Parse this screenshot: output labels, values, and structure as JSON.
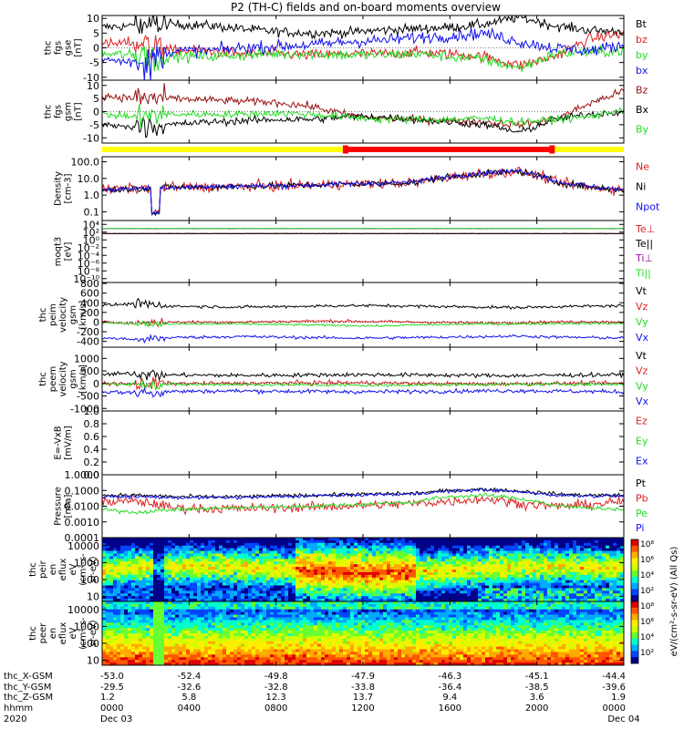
{
  "chart_data": {
    "type": "line",
    "title": "P2 (TH-C) fields and on-board moments overview",
    "mission_state_bar": {
      "labels": [
        "yellow",
        "red"
      ],
      "colors": [
        "#ffff00",
        "#ff0000"
      ],
      "red_span_hours": [
        11.2,
        20.7
      ]
    },
    "x_axis": {
      "range_hours": [
        0,
        24
      ],
      "tick_hours": [
        0,
        4,
        8,
        12,
        16,
        20,
        24
      ],
      "row_labels": [
        "thc_X-GSM",
        "thc_Y-GSM",
        "thc_Z-GSM",
        "hhmm",
        "2020"
      ],
      "columns": [
        [
          "-53.0",
          "-29.5",
          "1.2",
          "0000",
          "Dec 03"
        ],
        [
          "-52.4",
          "-32.6",
          "5.8",
          "0400",
          ""
        ],
        [
          "-49.8",
          "-32.8",
          "12.3",
          "0800",
          ""
        ],
        [
          "-47.9",
          "-33.8",
          "13.7",
          "1200",
          ""
        ],
        [
          "-46.3",
          "-36.4",
          "9.4",
          "1600",
          ""
        ],
        [
          "-45.1",
          "-38.5",
          "3.6",
          "2000",
          ""
        ],
        [
          "-44.4",
          "-39.6",
          "1.9",
          "0000",
          "Dec 04"
        ]
      ]
    },
    "panels": [
      {
        "id": "fgs_gse",
        "ylabel": [
          "thc",
          "fgs",
          "gse",
          "[nT]"
        ],
        "scale": "linear",
        "ylim": [
          -11,
          11
        ],
        "ticks": [
          "10",
          "5",
          "0",
          "-5",
          "-10"
        ],
        "tick_values": [
          10,
          5,
          0,
          -5,
          -10
        ],
        "series": [
          {
            "name": "Bt",
            "color": "#000000",
            "base": [
              7,
              7.5,
              8,
              7.6,
              6.5,
              5.5,
              5,
              5.2,
              6,
              6.5,
              7,
              8,
              10.5,
              7.5,
              6,
              5.5
            ],
            "noise": 0.8
          },
          {
            "name": "bz",
            "color": "#dd2222",
            "base": [
              1,
              2,
              -1,
              -1,
              -2,
              -2,
              -2.5,
              -2,
              -2,
              -1.5,
              -2,
              -3,
              -6,
              -3,
              3,
              5
            ],
            "noise": 0.9
          },
          {
            "name": "by",
            "color": "#22dd22",
            "base": [
              -2,
              -2.5,
              -3,
              -3,
              -2.5,
              -2,
              -2,
              -2.5,
              -2.5,
              -2,
              -3,
              -4,
              -7,
              -2,
              -1.5,
              -1
            ],
            "noise": 0.9
          },
          {
            "name": "bx",
            "color": "#1111ee",
            "base": [
              -4,
              -5,
              -1,
              -1,
              0,
              0.5,
              1,
              2,
              2.5,
              3.5,
              4,
              5,
              2,
              0,
              -1,
              1
            ],
            "noise": 1.0
          }
        ]
      },
      {
        "id": "fgs_gsm",
        "ylabel": [
          "thc",
          "fgs",
          "gsm",
          "[nT]"
        ],
        "scale": "linear",
        "ylim": [
          -12,
          12
        ],
        "ticks": [
          "10",
          "5",
          "0",
          "-5",
          "-10"
        ],
        "tick_values": [
          10,
          5,
          0,
          -5,
          -10
        ],
        "series": [
          {
            "name": "Bz",
            "color": "#991111",
            "base": [
              6,
              5,
              5,
              4.5,
              4,
              3.5,
              2,
              -1,
              -2.5,
              -3,
              -3.5,
              -4,
              -5,
              -3,
              3,
              8
            ],
            "noise": 0.7
          },
          {
            "name": "Bx",
            "color": "#000000",
            "base": [
              -5,
              -6,
              -5,
              -4,
              -3.5,
              -3,
              -3,
              -2,
              -2,
              -3,
              -4,
              -5,
              -8,
              -3,
              -1,
              0
            ],
            "noise": 0.7
          },
          {
            "name": "By",
            "color": "#22dd22",
            "base": [
              -1,
              -2,
              -1,
              -1,
              -1,
              -0.5,
              -1,
              -2,
              -3,
              -3,
              -3,
              -2.5,
              -4,
              -3,
              -2,
              1
            ],
            "noise": 0.7
          }
        ]
      },
      {
        "id": "density",
        "ylabel": [
          "Density",
          "[cm-3]"
        ],
        "scale": "log",
        "ylim": [
          0.03,
          200
        ],
        "ticks": [
          "100.0",
          "10.0",
          "1.0",
          "0.1"
        ],
        "tick_values": [
          100,
          10,
          1,
          0.1
        ],
        "series": [
          {
            "name": "Ne",
            "color": "#dd2222",
            "base": [
              2,
              2.5,
              3,
              3,
              3.5,
              3.5,
              4,
              4.5,
              5,
              5.5,
              12,
              20,
              25,
              6,
              3,
              2
            ],
            "noise": 0.15
          },
          {
            "name": "Ni",
            "color": "#000000",
            "base": [
              2,
              2.5,
              3,
              3,
              3.5,
              3.5,
              4,
              4.5,
              5,
              5.5,
              12,
              20,
              25,
              6,
              3,
              2
            ],
            "noise": 0.1
          },
          {
            "name": "Npot",
            "color": "#1111ee",
            "base": [
              2,
              2.6,
              3,
              3.1,
              3.5,
              3.6,
              4,
              4.6,
              5.2,
              6,
              13,
              22,
              28,
              6.5,
              3.2,
              2.1
            ],
            "noise": 0.08
          }
        ]
      },
      {
        "id": "moqt3",
        "ylabel": [
          "moqt3",
          "[eV]"
        ],
        "scale": "log",
        "ylim": [
          1e-11,
          100000.0
        ],
        "ticks": [
          "10⁴",
          "10²",
          "10⁰",
          "10⁻²",
          "10⁻⁴",
          "10⁻⁶",
          "10⁻⁸",
          "10⁻¹⁰"
        ],
        "tick_values": [
          10000.0,
          100,
          1,
          0.01,
          0.0001,
          1e-06,
          1e-08,
          1e-10
        ],
        "series": [
          {
            "name": "Te⊥",
            "color": "#dd2222",
            "base": [
              40,
              40,
              40,
              40,
              40,
              40,
              40,
              40,
              40,
              40,
              40,
              40,
              40,
              40,
              40,
              40
            ],
            "noise": 0.02
          },
          {
            "name": "Te||",
            "color": "#000000",
            "base": [
              45,
              45,
              45,
              45,
              45,
              45,
              45,
              45,
              45,
              45,
              45,
              45,
              45,
              45,
              45,
              45
            ],
            "noise": 0.02
          },
          {
            "name": "Ti⊥",
            "color": "#991199",
            "base": [
              800,
              800,
              800,
              800,
              800,
              800,
              800,
              800,
              800,
              800,
              800,
              800,
              800,
              800,
              800,
              800
            ],
            "noise": 0.02
          },
          {
            "name": "Ti||",
            "color": "#22dd22",
            "base": [
              900,
              900,
              900,
              900,
              900,
              900,
              900,
              900,
              900,
              900,
              900,
              900,
              900,
              900,
              900,
              900
            ],
            "noise": 0.02
          }
        ]
      },
      {
        "id": "peim_velocity",
        "ylabel": [
          "thc",
          "peim",
          "velocity",
          "gsm",
          "[km/s]"
        ],
        "scale": "linear",
        "ylim": [
          -520,
          820
        ],
        "ticks": [
          "800",
          "600",
          "400",
          "200",
          "0",
          "-200",
          "-400"
        ],
        "tick_values": [
          800,
          600,
          400,
          200,
          0,
          -200,
          -400
        ],
        "series": [
          {
            "name": "Vt",
            "color": "#000000",
            "base": [
              350,
              380,
              330,
              320,
              310,
              320,
              330,
              340,
              340,
              330,
              320,
              310,
              300,
              320,
              330,
              340
            ],
            "noise": 15
          },
          {
            "name": "Vz",
            "color": "#dd2222",
            "base": [
              0,
              -20,
              0,
              0,
              0,
              10,
              20,
              20,
              10,
              0,
              -10,
              -20,
              -10,
              0,
              10,
              0
            ],
            "noise": 15
          },
          {
            "name": "Vy",
            "color": "#22dd22",
            "base": [
              -20,
              -30,
              -40,
              -40,
              -40,
              -50,
              -60,
              -70,
              -80,
              -60,
              -50,
              -40,
              -40,
              -30,
              -30,
              -30
            ],
            "noise": 10
          },
          {
            "name": "Vx",
            "color": "#1111ee",
            "base": [
              -330,
              -360,
              -320,
              -310,
              -300,
              -310,
              -320,
              -330,
              -330,
              -320,
              -310,
              -300,
              -290,
              -310,
              -320,
              -330
            ],
            "noise": 15
          }
        ]
      },
      {
        "id": "peem_velocity",
        "ylabel": [
          "thc",
          "peem",
          "velocity",
          "gsm",
          "[km/s]"
        ],
        "scale": "linear",
        "ylim": [
          -1100,
          1450
        ],
        "ticks": [
          "1000",
          "500",
          "0",
          "-500",
          "-1000"
        ],
        "tick_values": [
          1000,
          500,
          0,
          -500,
          -1000
        ],
        "series": [
          {
            "name": "Vt",
            "color": "#000000",
            "base": [
              360,
              400,
              340,
              330,
              320,
              330,
              340,
              350,
              350,
              340,
              330,
              320,
              310,
              330,
              340,
              350
            ],
            "noise": 40
          },
          {
            "name": "Vz",
            "color": "#dd2222",
            "base": [
              0,
              -30,
              0,
              0,
              0,
              20,
              30,
              30,
              20,
              0,
              -10,
              -20,
              -10,
              0,
              10,
              0
            ],
            "noise": 40
          },
          {
            "name": "Vy",
            "color": "#22dd22",
            "base": [
              -20,
              -30,
              -40,
              -40,
              -40,
              -50,
              -60,
              -70,
              -80,
              -60,
              -50,
              -40,
              -40,
              -30,
              -30,
              -30
            ],
            "noise": 30
          },
          {
            "name": "Vx",
            "color": "#1111ee",
            "base": [
              -330,
              -370,
              -320,
              -310,
              -300,
              -310,
              -320,
              -330,
              -330,
              -320,
              -310,
              -300,
              -290,
              -310,
              -320,
              -330
            ],
            "noise": 40
          }
        ]
      },
      {
        "id": "efield",
        "ylabel": [
          "E=-VxB",
          "[mV/m]"
        ],
        "scale": "linear",
        "ylim": [
          0,
          1.0
        ],
        "ticks": [
          "1.0",
          "0.8",
          "0.6",
          "0.4",
          "0.2",
          "0.0"
        ],
        "tick_values": [
          1.0,
          0.8,
          0.6,
          0.4,
          0.2,
          0.0
        ],
        "series": [
          {
            "name": "Ez",
            "color": "#dd2222",
            "base": [],
            "noise": 0
          },
          {
            "name": "Ey",
            "color": "#22dd22",
            "base": [],
            "noise": 0
          },
          {
            "name": "Ex",
            "color": "#1111ee",
            "base": [],
            "noise": 0
          }
        ]
      },
      {
        "id": "pressure",
        "ylabel": [
          "Pressure",
          "[nPa]"
        ],
        "scale": "log",
        "ylim": [
          0.0001,
          1.0
        ],
        "ticks": [
          "1.0000",
          "0.1000",
          "0.0100",
          "0.0010",
          "0.0001"
        ],
        "tick_values": [
          1.0,
          0.1,
          0.01,
          0.001,
          0.0001
        ],
        "series": [
          {
            "name": "Pt",
            "color": "#000000",
            "base": [
              0.05,
              0.05,
              0.04,
              0.04,
              0.04,
              0.045,
              0.05,
              0.055,
              0.06,
              0.065,
              0.1,
              0.12,
              0.09,
              0.06,
              0.05,
              0.05
            ],
            "noise": 0.06
          },
          {
            "name": "Pb",
            "color": "#dd2222",
            "base": [
              0.02,
              0.02,
              0.008,
              0.007,
              0.007,
              0.008,
              0.009,
              0.01,
              0.012,
              0.015,
              0.02,
              0.03,
              0.015,
              0.01,
              0.012,
              0.02
            ],
            "noise": 0.15
          },
          {
            "name": "Pe",
            "color": "#22dd22",
            "base": [
              0.006,
              0.004,
              0.006,
              0.007,
              0.008,
              0.009,
              0.01,
              0.012,
              0.015,
              0.018,
              0.04,
              0.05,
              0.03,
              0.01,
              0.008,
              0.006
            ],
            "noise": 0.06
          },
          {
            "name": "Pi",
            "color": "#1111ee",
            "base": [
              0.04,
              0.04,
              0.035,
              0.035,
              0.035,
              0.04,
              0.045,
              0.05,
              0.055,
              0.06,
              0.09,
              0.11,
              0.08,
              0.05,
              0.045,
              0.045
            ],
            "noise": 0.05
          }
        ]
      },
      {
        "id": "peir_spectrogram",
        "ylabel": [
          "thc",
          "peir",
          "en",
          "eflux",
          "eV",
          "(cm²-s-",
          "sr-eV)"
        ],
        "scale": "log",
        "ylim": [
          5,
          30000
        ],
        "ticks": [
          "10000",
          "1000",
          "100",
          "10"
        ],
        "tick_values": [
          10000,
          1000,
          100,
          10
        ],
        "spectrogram": true
      },
      {
        "id": "peer_spectrogram",
        "ylabel": [
          "thc",
          "peer",
          "en",
          "eflux",
          "eV",
          "(cm²-s-",
          "sr-eV)"
        ],
        "scale": "log",
        "ylim": [
          5,
          30000
        ],
        "ticks": [
          "10000",
          "1000",
          "100",
          "10"
        ],
        "tick_values": [
          10000,
          1000,
          100,
          10
        ],
        "spectrogram": true
      }
    ],
    "colorbar": {
      "ticks": [
        "10⁸",
        "10⁶",
        "10⁴",
        "10²",
        "10⁸",
        "10⁶",
        "10⁴",
        "10²"
      ],
      "label": "eV/(cm²-s-sr-eV) (All Qs)",
      "label2": "eV/(cm²-s-sr-eV) (All Qs)"
    }
  }
}
